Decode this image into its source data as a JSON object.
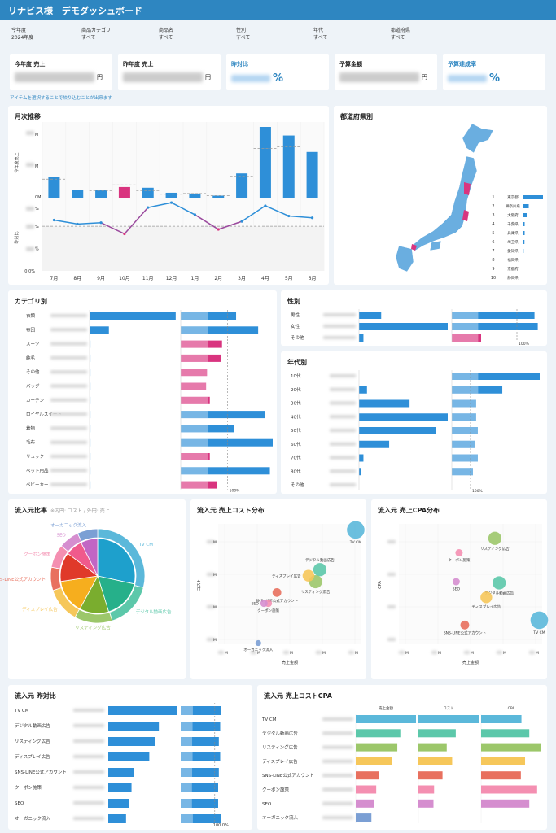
{
  "header": {
    "title": "リナビス様　デモダッシュボード"
  },
  "filters": [
    {
      "label": "今年度",
      "value": "2024年度"
    },
    {
      "label": "商品カテゴリ",
      "value": "すべて"
    },
    {
      "label": "商品名",
      "value": "すべて"
    },
    {
      "label": "性別",
      "value": "すべて"
    },
    {
      "label": "年代",
      "value": "すべて"
    },
    {
      "label": "都道府県",
      "value": "すべて"
    }
  ],
  "kpis": [
    {
      "title": "今年度 売上",
      "unit": "円",
      "accent": false
    },
    {
      "title": "昨年度 売上",
      "unit": "円",
      "accent": false
    },
    {
      "title": "昨対比",
      "unit": "%",
      "accent": true
    },
    {
      "title": "予算金額",
      "unit": "円",
      "accent": false
    },
    {
      "title": "予算達成率",
      "unit": "%",
      "accent": true
    }
  ],
  "note": "アイテムを選択することで絞り込むことが出来ます",
  "colors": {
    "blue": "#2e8fd8",
    "pink": "#d9347f",
    "lightblue": "#a8cdee",
    "lightpink": "#eea0c4",
    "mapblue": "#6aaee0"
  },
  "monthly": {
    "title": "月次推移",
    "ylabel_sales": "今年度売上",
    "ylabel_yoy": "昨対比",
    "sales_ticks": [
      "M",
      "M",
      "0M"
    ],
    "yoy_ticks": [
      "%",
      "%",
      "%",
      "0.0%"
    ],
    "months": [
      "7月",
      "8月",
      "9月",
      "10月",
      "11月",
      "12月",
      "1月",
      "2月",
      "3月",
      "4月",
      "5月",
      "6月"
    ],
    "sales": [
      0.3,
      0.12,
      0.12,
      0.16,
      0.15,
      0.08,
      0.07,
      0.04,
      0.35,
      1.0,
      0.88,
      0.65
    ],
    "prev_sales": [
      0.27,
      0.12,
      0.11,
      0.19,
      0.11,
      0.06,
      0.07,
      0.04,
      0.31,
      0.7,
      0.72,
      0.55
    ],
    "yoy": [
      114,
      105,
      108,
      83,
      142,
      153,
      126,
      93,
      111,
      146,
      123,
      119
    ],
    "yoy_max": 155
  },
  "prefecture": {
    "title": "都道府県別",
    "ranking": [
      {
        "rank": "1",
        "name": "東京都",
        "value": 1.0
      },
      {
        "rank": "2",
        "name": "神奈川県",
        "value": 0.3
      },
      {
        "rank": "3",
        "name": "大阪府",
        "value": 0.2
      },
      {
        "rank": "4",
        "name": "千葉県",
        "value": 0.1
      },
      {
        "rank": "5",
        "name": "兵庫県",
        "value": 0.1
      },
      {
        "rank": "6",
        "name": "埼玉県",
        "value": 0.09
      },
      {
        "rank": "7",
        "name": "愛知県",
        "value": 0.05
      },
      {
        "rank": "8",
        "name": "福岡県",
        "value": 0.03
      },
      {
        "rank": "9",
        "name": "京都府",
        "value": 0.03
      },
      {
        "rank": "10",
        "name": "静岡県",
        "value": 0.0
      }
    ]
  },
  "category": {
    "title": "カテゴリ別",
    "pct_label": "100%",
    "items": [
      {
        "name": "衣類",
        "sales": 0.98,
        "yoy": 118
      },
      {
        "name": "布団",
        "sales": 0.22,
        "yoy": 165
      },
      {
        "name": "スーツ",
        "sales": 0.01,
        "yoy": 88
      },
      {
        "name": "純毛",
        "sales": 0.01,
        "yoy": 85
      },
      {
        "name": "その他",
        "sales": 0.01,
        "yoy": 56
      },
      {
        "name": "バッグ",
        "sales": 0.01,
        "yoy": 54
      },
      {
        "name": "カーテン",
        "sales": 0.01,
        "yoy": 62
      },
      {
        "name": "ロイヤルスイート",
        "sales": 0.01,
        "yoy": 179
      },
      {
        "name": "着物",
        "sales": 0.01,
        "yoy": 114
      },
      {
        "name": "毛布",
        "sales": 0.01,
        "yoy": 196
      },
      {
        "name": "リュック",
        "sales": 0.01,
        "yoy": 62
      },
      {
        "name": "ペット用品",
        "sales": 0.01,
        "yoy": 190
      },
      {
        "name": "ベビーカー",
        "sales": 0.01,
        "yoy": 77
      }
    ],
    "yoy_max": 196
  },
  "gender": {
    "title": "性別",
    "pct_label": "100%",
    "items": [
      {
        "name": "男性",
        "sales": 0.25,
        "yoy": 127
      },
      {
        "name": "女性",
        "sales": 1.0,
        "yoy": 132
      },
      {
        "name": "その他",
        "sales": 0.05,
        "yoy": 45
      }
    ],
    "yoy_max": 135
  },
  "age": {
    "title": "年代別",
    "pct_label": "100%",
    "items": [
      {
        "name": "10代",
        "sales": 0.0,
        "yoy": 470
      },
      {
        "name": "20代",
        "sales": 0.09,
        "yoy": 270
      },
      {
        "name": "30代",
        "sales": 0.57,
        "yoy": 130
      },
      {
        "name": "40代",
        "sales": 1.0,
        "yoy": 130
      },
      {
        "name": "50代",
        "sales": 0.87,
        "yoy": 139
      },
      {
        "name": "60代",
        "sales": 0.34,
        "yoy": 126
      },
      {
        "name": "70代",
        "sales": 0.05,
        "yoy": 139
      },
      {
        "name": "80代",
        "sales": 0.02,
        "yoy": 113
      },
      {
        "name": "その他",
        "sales": 0.0,
        "yoy": 0
      }
    ],
    "yoy_max": 470
  },
  "channels": [
    {
      "name": "TV CM",
      "color": "#5bb8da",
      "inner": "#1ea0cc",
      "sales_share": 0.29,
      "cost_share": 0.27,
      "s1": [
        96,
        95,
        12
      ],
      "s2": [
        98,
        20,
        12
      ],
      "yoy": 119,
      "sales": 1.0,
      "cost": 1.0,
      "cpa": 0.67
    },
    {
      "name": "デジタル動画広告",
      "color": "#5cc8aa",
      "inner": "#26b08a",
      "sales_share": 0.16,
      "cost_share": 0.16,
      "s1": [
        71,
        62,
        9
      ],
      "s2": [
        70,
        51,
        9
      ],
      "yoy": 116,
      "sales": 0.74,
      "cost": 0.62,
      "cpa": 0.8
    },
    {
      "name": "リスティング広告",
      "color": "#9cc76a",
      "inner": "#7aad2e",
      "sales_share": 0.13,
      "cost_share": 0.12,
      "s1": [
        68,
        52,
        9
      ],
      "s2": [
        67,
        88,
        9
      ],
      "yoy": 112,
      "sales": 0.69,
      "cost": 0.47,
      "cpa": 1.0
    },
    {
      "name": "ディスプレイ広告",
      "color": "#f6c75a",
      "inner": "#f6ae1e",
      "sales_share": 0.12,
      "cost_share": 0.14,
      "s1": [
        63,
        57,
        8
      ],
      "s2": [
        61,
        39,
        8
      ],
      "yoy": 116,
      "sales": 0.6,
      "cost": 0.56,
      "cpa": 0.73
    },
    {
      "name": "SNS-LINE公式アカウント",
      "color": "#e8705e",
      "inner": "#e0392a",
      "sales_share": 0.08,
      "cost_share": 0.12,
      "s1": [
        41,
        43,
        6
      ],
      "s2": [
        46,
        16,
        6
      ],
      "yoy": 112,
      "sales": 0.38,
      "cost": 0.4,
      "cpa": 0.66
    },
    {
      "name": "クーポン施策",
      "color": "#f48fb1",
      "inner": "#f05a8c",
      "sales_share": 0.08,
      "cost_share": 0.07,
      "s1": [
        35,
        34,
        5
      ],
      "s2": [
        42,
        76,
        5
      ],
      "yoy": 110,
      "sales": 0.34,
      "cost": 0.26,
      "cpa": 0.93
    },
    {
      "name": "SEO",
      "color": "#d58ecf",
      "inner": "#c266c4",
      "sales_share": 0.07,
      "cost_share": 0.07,
      "s1": [
        32,
        34,
        5
      ],
      "s2": [
        40,
        52,
        5
      ],
      "yoy": 110,
      "sales": 0.3,
      "cost": 0.25,
      "cpa": 0.8
    },
    {
      "name": "オーガニック流入",
      "color": "#7b9fd4",
      "inner": "#7b9fd4",
      "sales_share": 0.07,
      "cost_share": 0.0,
      "s1": [
        28,
        1,
        4
      ],
      "s2": null,
      "yoy": 119,
      "sales": 0.26,
      "cost": 0.0,
      "cpa": 0.0
    }
  ],
  "pie": {
    "title": "流入元比率",
    "subtitle": "※内円: コスト / 外円: 売上"
  },
  "scatter_cost": {
    "title": "流入元 売上コスト分布",
    "xlabel": "売上金額",
    "ylabel": "コスト",
    "yticks": [
      "M",
      "M",
      "M",
      "M"
    ],
    "xticks": [
      "M",
      "M",
      "M",
      "M",
      "M"
    ]
  },
  "scatter_cpa": {
    "title": "流入元 売上CPA分布",
    "xlabel": "売上金額",
    "ylabel": "CPA",
    "xticks": [
      "M",
      "M",
      "M",
      "M",
      "M"
    ]
  },
  "channel_yoy": {
    "title": "流入元 昨対比",
    "pct_label": "100.0%",
    "yoy_max": 122
  },
  "channel_cpa": {
    "title": "流入元 売上コストCPA",
    "columns": [
      "売上金額",
      "コスト",
      "CPA"
    ]
  }
}
